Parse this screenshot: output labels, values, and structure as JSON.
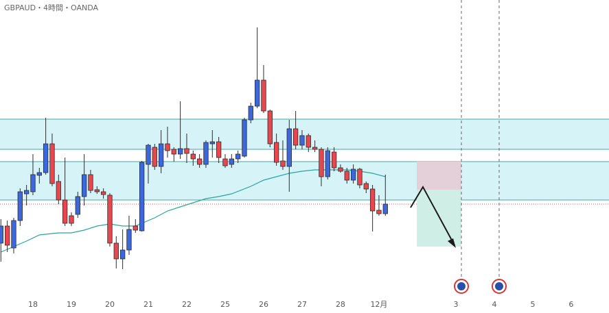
{
  "chart_data": {
    "type": "candlestick",
    "title": "GBPAUD・4時間・OANDA",
    "up_color": "#3d68dc",
    "down_color": "#e8474f",
    "wick_color": "#2b2b2b",
    "open": [
      75,
      100,
      68,
      108,
      147,
      150,
      174,
      178,
      220,
      165,
      138,
      115,
      117,
      143,
      175,
      153,
      150,
      145,
      75,
      52,
      65,
      100,
      93,
      190,
      215,
      187,
      220,
      212,
      205,
      213,
      205,
      198,
      190,
      220,
      223,
      198,
      190,
      198,
      202,
      255,
      275,
      313,
      268,
      222,
      195,
      187,
      242,
      218,
      232,
      215,
      212,
      172,
      208,
      185,
      180,
      167,
      183,
      162,
      154,
      123,
      118
    ],
    "high": [
      110,
      108,
      112,
      155,
      160,
      205,
      185,
      258,
      235,
      175,
      200,
      120,
      150,
      205,
      182,
      158,
      155,
      148,
      85,
      95,
      115,
      110,
      195,
      220,
      220,
      240,
      245,
      215,
      282,
      235,
      210,
      205,
      225,
      240,
      230,
      205,
      205,
      210,
      258,
      280,
      390,
      335,
      270,
      235,
      225,
      255,
      268,
      240,
      235,
      225,
      215,
      215,
      215,
      190,
      185,
      190,
      185,
      165,
      160,
      145,
      175
    ],
    "low": [
      48,
      62,
      60,
      100,
      130,
      145,
      162,
      175,
      158,
      132,
      100,
      100,
      112,
      130,
      148,
      147,
      140,
      70,
      38,
      37,
      58,
      90,
      92,
      162,
      182,
      177,
      200,
      194,
      198,
      192,
      188,
      185,
      185,
      200,
      192,
      185,
      185,
      192,
      200,
      250,
      272,
      265,
      215,
      188,
      182,
      150,
      212,
      212,
      208,
      208,
      158,
      168,
      180,
      178,
      162,
      162,
      155,
      148,
      92,
      115,
      115
    ],
    "close": [
      100,
      72,
      108,
      150,
      152,
      175,
      178,
      220,
      162,
      138,
      104,
      104,
      143,
      175,
      152,
      150,
      146,
      75,
      52,
      65,
      95,
      94,
      193,
      218,
      187,
      220,
      210,
      205,
      213,
      206,
      198,
      190,
      222,
      223,
      200,
      188,
      198,
      205,
      255,
      275,
      313,
      268,
      220,
      193,
      187,
      242,
      218,
      232,
      215,
      212,
      172,
      210,
      185,
      180,
      167,
      183,
      160,
      154,
      122,
      118,
      132
    ],
    "ma": {
      "color": "#26a69a",
      "x": [
        0,
        2,
        4,
        6,
        9,
        11,
        13,
        15,
        17,
        19,
        21,
        24,
        26,
        28,
        30,
        32,
        34,
        36,
        39,
        41,
        43,
        45,
        47,
        49,
        51,
        54,
        56,
        58,
        60
      ],
      "values": [
        62,
        70,
        78,
        87,
        90,
        90,
        94,
        100,
        103,
        100,
        100,
        112,
        122,
        128,
        134,
        140,
        143,
        147,
        158,
        167,
        172,
        177,
        180,
        182,
        182,
        182,
        180,
        177,
        172
      ]
    },
    "ylim": [
      0,
      430
    ],
    "xlim": [
      -0.14,
      94.9
    ],
    "xticks": [
      {
        "value": 5,
        "label": "18"
      },
      {
        "value": 11,
        "label": "19"
      },
      {
        "value": 17,
        "label": "20"
      },
      {
        "value": 23,
        "label": "21"
      },
      {
        "value": 29,
        "label": "22"
      },
      {
        "value": 35,
        "label": "25"
      },
      {
        "value": 41,
        "label": "26"
      },
      {
        "value": 47,
        "label": "27"
      },
      {
        "value": 53,
        "label": "28"
      },
      {
        "value": 59,
        "label": "12月"
      },
      {
        "value": 71,
        "label": "3"
      },
      {
        "value": 77,
        "label": "4"
      },
      {
        "value": 83,
        "label": "5"
      },
      {
        "value": 89,
        "label": "6"
      }
    ]
  }
}
